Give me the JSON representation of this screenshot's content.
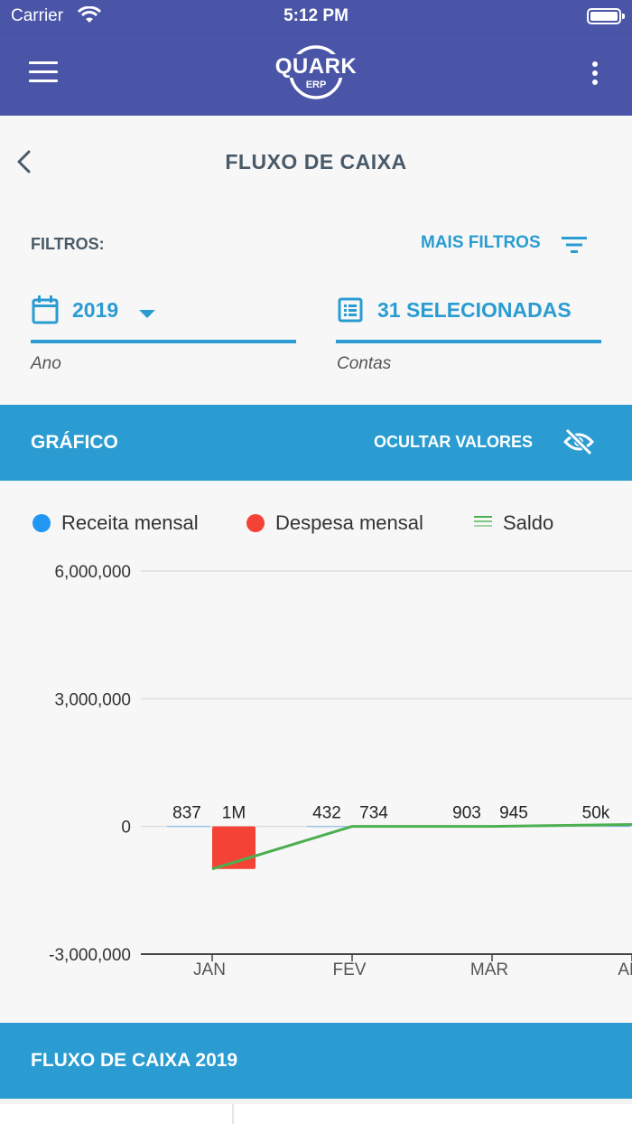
{
  "status_bar": {
    "carrier": "Carrier",
    "time": "5:12 PM"
  },
  "app_bar": {
    "logo_text": "QUARK",
    "logo_sub": "ERP"
  },
  "page": {
    "title": "FLUXO DE CAIXA"
  },
  "filters": {
    "label": "FILTROS:",
    "more_filters_label": "MAIS FILTROS",
    "year": {
      "value": "2019",
      "label": "Ano"
    },
    "accounts": {
      "value": "31 SELECIONADAS",
      "label": "Contas"
    }
  },
  "chart_section": {
    "title": "GRÁFICO",
    "hide_values_label": "OCULTAR VALORES"
  },
  "colors": {
    "header": "#4a55a8",
    "accent": "#2a9cd1",
    "receita": "#2196f3",
    "despesa": "#f44336",
    "saldo": "#4caf50"
  },
  "chart_data": {
    "type": "bar",
    "legend": [
      {
        "name": "Receita mensal",
        "color": "#2196f3",
        "marker": "dot"
      },
      {
        "name": "Despesa mensal",
        "color": "#f44336",
        "marker": "dot"
      },
      {
        "name": "Saldo",
        "color": "#4caf50",
        "marker": "line"
      }
    ],
    "categories": [
      "JAN",
      "FEV",
      "MAR",
      "AB"
    ],
    "y_ticks": [
      "6,000,000",
      "3,000,000",
      "0",
      "-3,000,000"
    ],
    "ylim": [
      -3000000,
      6000000
    ],
    "series": [
      {
        "name": "Receita mensal",
        "type": "bar",
        "values": [
          837,
          432,
          903,
          50000
        ],
        "labels": [
          "837",
          "432",
          "903",
          "50k"
        ]
      },
      {
        "name": "Despesa mensal",
        "type": "bar",
        "values": [
          -1000000,
          -734,
          -945,
          null
        ],
        "labels": [
          "1M",
          "734",
          "945",
          ""
        ]
      },
      {
        "name": "Saldo",
        "type": "line",
        "values": [
          -1000000,
          0,
          0,
          50000
        ]
      }
    ],
    "grid": true,
    "legend_position": "top-left"
  },
  "cash_flow_section": {
    "title": "FLUXO DE CAIXA 2019"
  }
}
